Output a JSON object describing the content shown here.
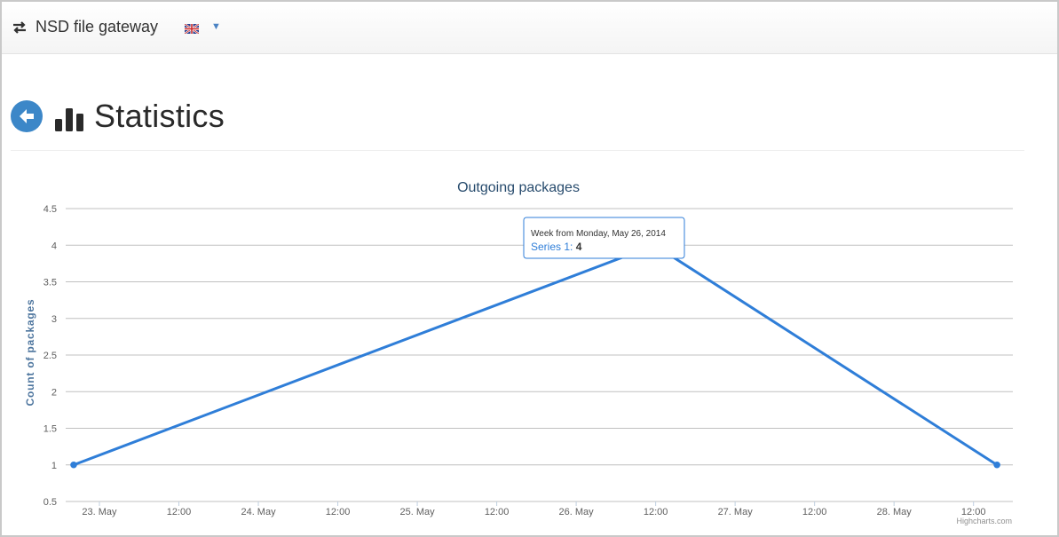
{
  "navbar": {
    "brand": "NSD file gateway",
    "brand_icon": "swap-arrows-icon",
    "language_flag": "uk-flag-icon",
    "language_caret": "caret-down-icon"
  },
  "header": {
    "title": "Statistics",
    "back_icon": "arrow-left-circle-icon",
    "title_icon": "bar-chart-icon",
    "back_color": "#3c87c8"
  },
  "chart_data": {
    "type": "line",
    "title": "Outgoing packages",
    "ylabel": "Count of packages",
    "xlabel": "",
    "x_ticks": [
      "23. May",
      "12:00",
      "24. May",
      "12:00",
      "25. May",
      "12:00",
      "26. May",
      "12:00",
      "27. May",
      "12:00",
      "28. May",
      "12:00"
    ],
    "x_range": [
      "2014-05-22 23:00",
      "2014-05-29 07:00"
    ],
    "ylim": [
      0.5,
      4.5
    ],
    "y_ticks": [
      "0.5",
      "1",
      "1.5",
      "2",
      "2.5",
      "3",
      "3.5",
      "4",
      "4.5"
    ],
    "grid": true,
    "series": [
      {
        "name": "Series 1",
        "color": "#2f7ed8",
        "points": [
          {
            "x": "2014-05-22T23:00",
            "y": 1
          },
          {
            "x": "2014-05-26T22:00",
            "y": 4
          },
          {
            "x": "2014-05-29T06:00",
            "y": 1
          }
        ]
      }
    ],
    "tooltip": {
      "header": "Week from Monday, May 26, 2014",
      "series_label": "Series 1",
      "value": "4"
    },
    "credits": "Highcharts.com"
  }
}
